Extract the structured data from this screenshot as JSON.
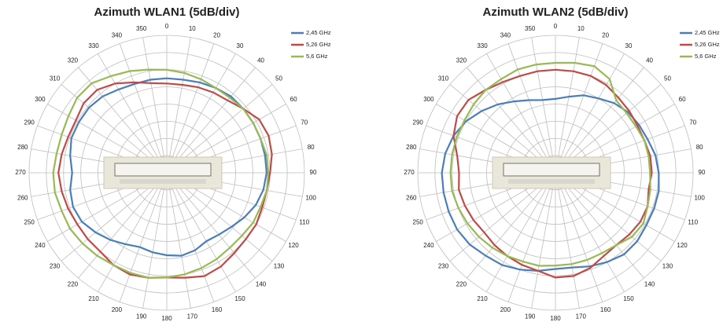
{
  "chart_data": [
    {
      "type": "polar",
      "title": "Azimuth  WLAN1 (5dB/div)",
      "categories": [
        "0",
        "10",
        "20",
        "30",
        "40",
        "50",
        "60",
        "70",
        "80",
        "90",
        "100",
        "110",
        "120",
        "130",
        "140",
        "150",
        "160",
        "170",
        "180",
        "190",
        "200",
        "210",
        "220",
        "230",
        "240",
        "250",
        "260",
        "270",
        "280",
        "290",
        "300",
        "310",
        "320",
        "330",
        "340",
        "350"
      ],
      "ylim": [
        0,
        8
      ],
      "yticks": [
        1,
        2,
        3,
        4,
        5,
        6,
        7,
        8
      ],
      "grid": true,
      "legend": "top-right",
      "series": [
        {
          "name": "2,45 GHz",
          "color": "#4a7ebb",
          "values": [
            5.5,
            5.5,
            5.6,
            5.7,
            5.8,
            5.8,
            5.8,
            5.8,
            5.8,
            5.8,
            5.7,
            5.5,
            5.2,
            4.9,
            4.7,
            4.6,
            4.8,
            4.9,
            4.8,
            4.7,
            4.6,
            4.8,
            5.1,
            5.4,
            5.7,
            5.8,
            5.7,
            5.5,
            5.7,
            5.9,
            5.9,
            5.9,
            5.8,
            5.6,
            5.5,
            5.5
          ]
        },
        {
          "name": "5,26 GHz",
          "color": "#be4b48",
          "values": [
            5.2,
            5.2,
            5.3,
            5.4,
            5.5,
            5.8,
            6.2,
            6.3,
            6.2,
            6.0,
            5.9,
            5.9,
            6.0,
            6.0,
            6.1,
            6.3,
            6.4,
            6.2,
            6.1,
            6.2,
            6.3,
            6.2,
            6.0,
            6.0,
            6.0,
            6.1,
            6.2,
            6.3,
            6.2,
            6.1,
            6.1,
            6.3,
            6.3,
            6.0,
            5.6,
            5.3
          ]
        },
        {
          "name": "5,6 GHz",
          "color": "#98b954",
          "values": [
            6.0,
            5.9,
            5.8,
            5.7,
            5.7,
            5.8,
            5.8,
            5.8,
            5.9,
            5.9,
            5.9,
            5.8,
            5.8,
            5.7,
            5.7,
            5.8,
            5.9,
            6.0,
            6.1,
            6.2,
            6.2,
            6.2,
            6.3,
            6.4,
            6.5,
            6.5,
            6.6,
            6.6,
            6.5,
            6.5,
            6.6,
            6.8,
            6.8,
            6.5,
            6.3,
            6.1
          ]
        }
      ]
    },
    {
      "type": "polar",
      "title": "Azimuth  WLAN2 (5dB/div)",
      "categories": [
        "0",
        "10",
        "20",
        "30",
        "40",
        "50",
        "60",
        "70",
        "80",
        "90",
        "100",
        "110",
        "120",
        "130",
        "140",
        "150",
        "160",
        "170",
        "180",
        "190",
        "200",
        "210",
        "220",
        "230",
        "240",
        "250",
        "260",
        "270",
        "280",
        "290",
        "300",
        "310",
        "320",
        "330",
        "340",
        "350"
      ],
      "ylim": [
        0,
        8
      ],
      "yticks": [
        1,
        2,
        3,
        4,
        5,
        6,
        7,
        8
      ],
      "grid": true,
      "legend": "top-right",
      "series": [
        {
          "name": "2,45 GHz",
          "color": "#4a7ebb",
          "values": [
            4.3,
            4.5,
            4.8,
            5.0,
            5.3,
            5.5,
            5.6,
            5.7,
            5.9,
            6.0,
            6.1,
            6.1,
            6.1,
            6.2,
            6.2,
            6.0,
            5.8,
            5.6,
            5.6,
            5.8,
            6.0,
            6.2,
            6.3,
            6.5,
            6.6,
            6.6,
            6.6,
            6.6,
            6.5,
            6.3,
            6.0,
            5.6,
            5.2,
            4.8,
            4.5,
            4.3
          ]
        },
        {
          "name": "5,26 GHz",
          "color": "#be4b48",
          "values": [
            6.0,
            6.0,
            6.0,
            5.9,
            5.7,
            5.6,
            5.5,
            5.5,
            5.6,
            5.6,
            5.5,
            5.7,
            5.7,
            5.6,
            5.5,
            5.6,
            5.9,
            6.1,
            6.1,
            5.8,
            5.7,
            5.6,
            5.5,
            5.4,
            5.5,
            5.6,
            5.7,
            5.6,
            5.8,
            6.3,
            6.6,
            6.6,
            6.3,
            6.1,
            6.0,
            6.0
          ]
        },
        {
          "name": "5,6 GHz",
          "color": "#98b954",
          "values": [
            6.4,
            6.5,
            6.6,
            6.3,
            5.5,
            5.4,
            5.4,
            5.5,
            5.5,
            5.5,
            5.6,
            5.7,
            5.9,
            5.8,
            5.5,
            5.4,
            5.4,
            5.4,
            5.4,
            5.5,
            5.5,
            5.6,
            5.7,
            5.8,
            5.9,
            6.0,
            6.1,
            6.1,
            6.1,
            6.1,
            6.1,
            6.2,
            6.3,
            6.3,
            6.4,
            6.4
          ]
        }
      ]
    }
  ]
}
